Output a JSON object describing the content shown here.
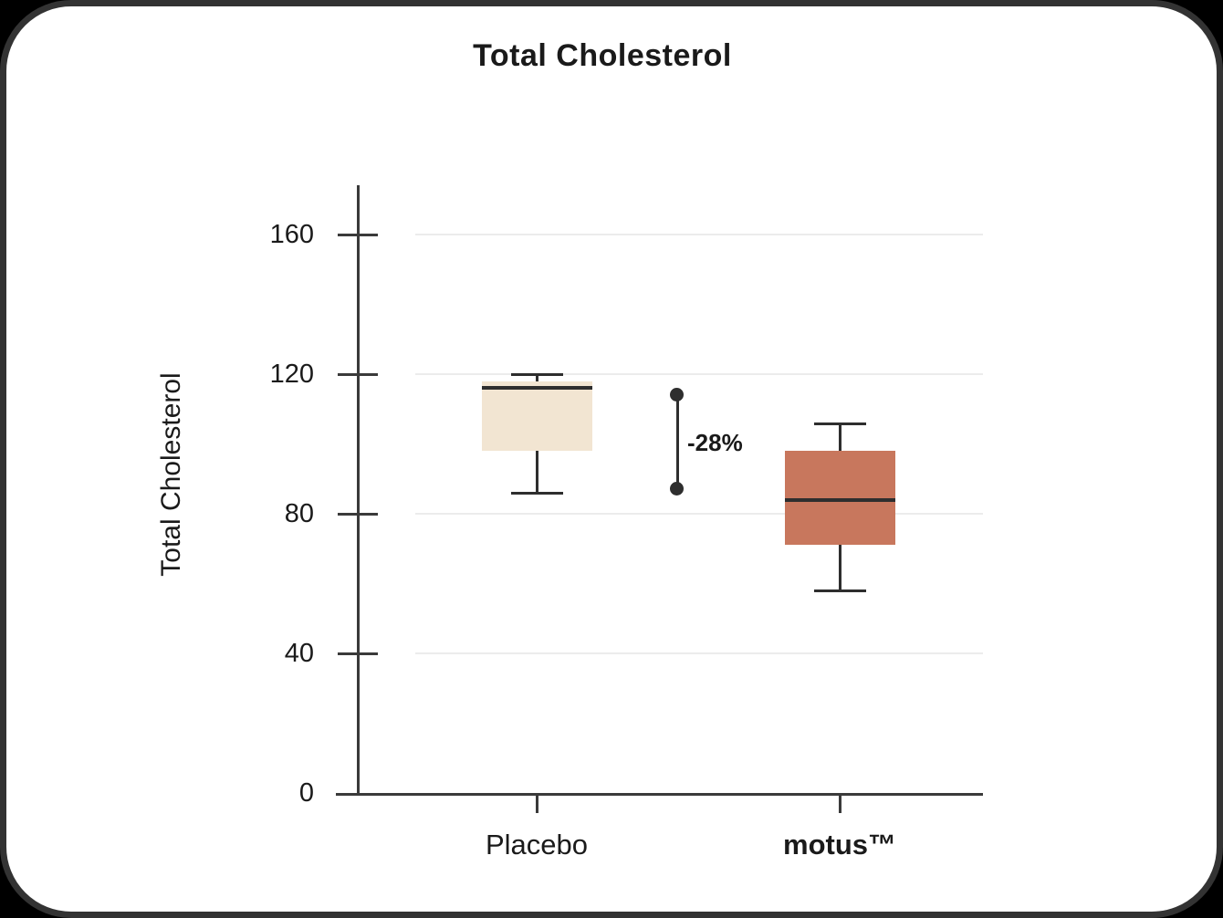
{
  "page": {
    "background": "#000000",
    "card_background": "#ffffff",
    "card_border_color": "#333333"
  },
  "chart_data": {
    "type": "boxplot",
    "title": "Total Cholesterol",
    "ylabel": "Total Cholesterol",
    "xlabel": "",
    "ylim": [
      0,
      175
    ],
    "yticks": [
      0,
      40,
      80,
      120,
      160
    ],
    "grid": "horizontal-light",
    "legend": "none",
    "categories": [
      "Placebo",
      "motus™"
    ],
    "series": [
      {
        "name": "Placebo",
        "bold_label": false,
        "color": "#f2e5d2",
        "whisker_low": 86,
        "q1": 98,
        "median": 116,
        "q3": 118,
        "whisker_high": 120
      },
      {
        "name": "motus™",
        "bold_label": true,
        "color": "#c8775d",
        "whisker_low": 58,
        "q1": 71,
        "median": 84,
        "q3": 98,
        "whisker_high": 106
      }
    ],
    "annotation": {
      "label": "-28%",
      "from_value": 114,
      "to_value": 87
    },
    "colors": {
      "line": "#2e2e2e",
      "axis": "#3a3a3a",
      "grid": "#ececec",
      "text": "#1a1a1a"
    }
  }
}
